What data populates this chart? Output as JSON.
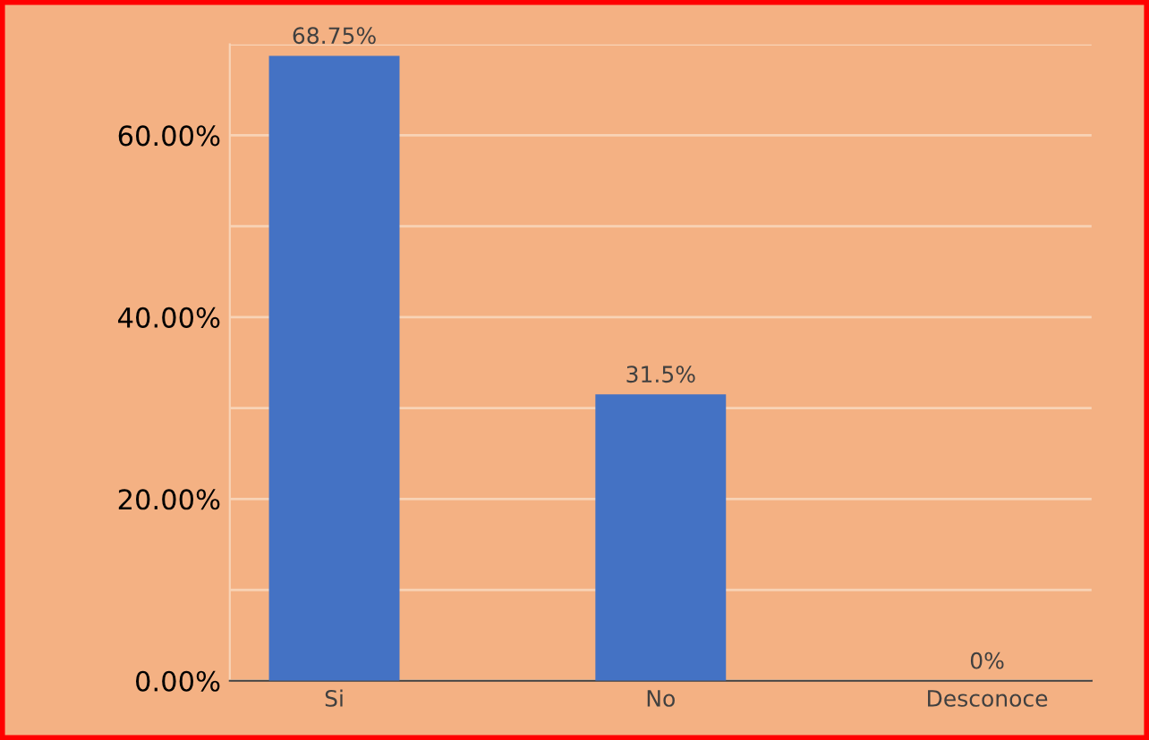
{
  "chart_data": {
    "type": "bar",
    "categories": [
      "Si",
      "No",
      "Desconoce"
    ],
    "values": [
      68.75,
      31.5,
      0
    ],
    "color": "#4472c4",
    "value_labels": [
      "68.75%",
      "31.5%",
      "0%"
    ],
    "ylim": [
      0,
      70
    ],
    "yticks": [
      {
        "value": 0,
        "label": "0.00%"
      },
      {
        "value": 10,
        "label": null
      },
      {
        "value": 20,
        "label": "20.00%"
      },
      {
        "value": 30,
        "label": null
      },
      {
        "value": 40,
        "label": "40.00%"
      },
      {
        "value": 50,
        "label": null
      },
      {
        "value": 60,
        "label": "60.00%"
      },
      {
        "value": 70,
        "label": null
      }
    ],
    "grid": "y",
    "legend": false
  }
}
